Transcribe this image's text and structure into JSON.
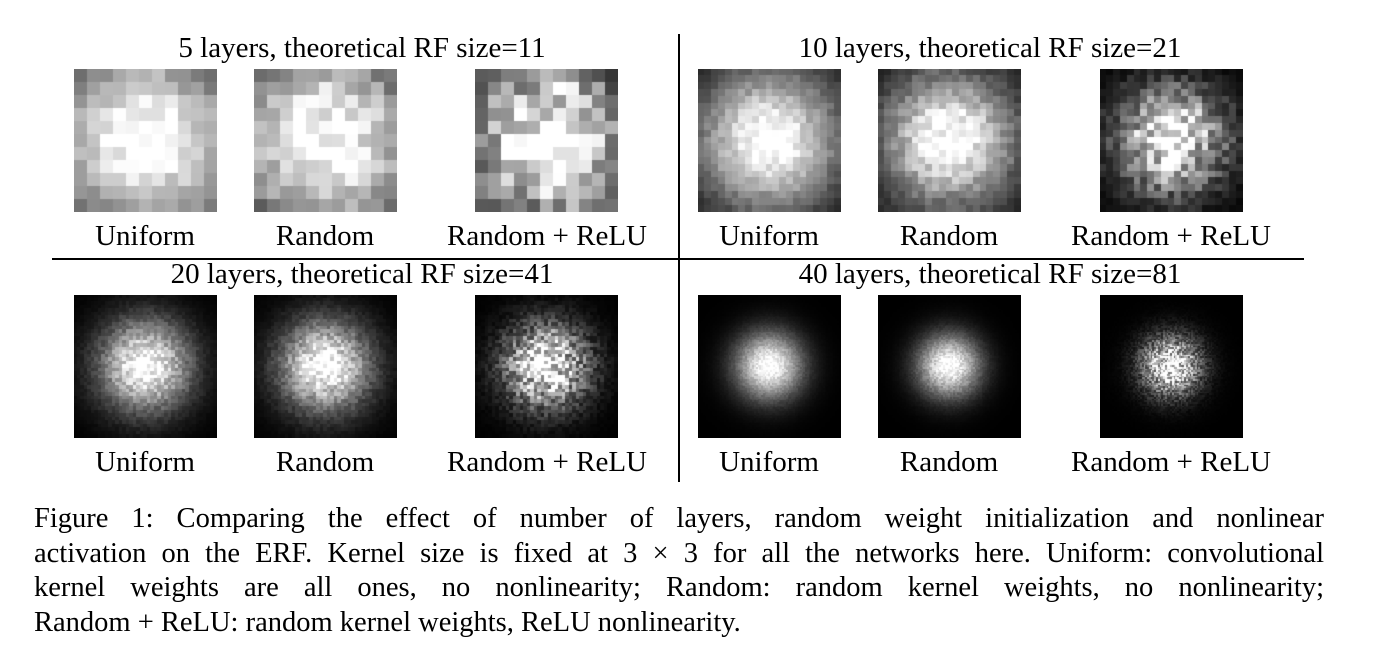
{
  "figure": {
    "panels": [
      {
        "title": "5 layers, theoretical RF size=11",
        "grid": 11,
        "images": [
          {
            "label": "Uniform",
            "sigma": 0.5,
            "noise": 0.1,
            "seed": 11
          },
          {
            "label": "Random",
            "sigma": 0.5,
            "noise": 0.18,
            "seed": 12
          },
          {
            "label": "Random + ReLU",
            "sigma": 0.42,
            "noise": 0.38,
            "seed": 13
          }
        ]
      },
      {
        "title": "10 layers, theoretical RF size=21",
        "grid": 21,
        "images": [
          {
            "label": "Uniform",
            "sigma": 0.36,
            "noise": 0.12,
            "seed": 21
          },
          {
            "label": "Random",
            "sigma": 0.34,
            "noise": 0.18,
            "seed": 22
          },
          {
            "label": "Random + ReLU",
            "sigma": 0.26,
            "noise": 0.45,
            "seed": 23
          }
        ]
      },
      {
        "title": "20 layers, theoretical RF size=41",
        "grid": 41,
        "images": [
          {
            "label": "Uniform",
            "sigma": 0.22,
            "noise": 0.22,
            "seed": 31
          },
          {
            "label": "Random",
            "sigma": 0.22,
            "noise": 0.25,
            "seed": 32
          },
          {
            "label": "Random + ReLU",
            "sigma": 0.2,
            "noise": 0.55,
            "seed": 33
          }
        ]
      },
      {
        "title": "40 layers, theoretical RF size=81",
        "grid": 81,
        "images": [
          {
            "label": "Uniform",
            "sigma": 0.16,
            "noise": 0.12,
            "seed": 41
          },
          {
            "label": "Random",
            "sigma": 0.15,
            "noise": 0.15,
            "seed": 42
          },
          {
            "label": "Random + ReLU",
            "sigma": 0.14,
            "noise": 0.6,
            "seed": 43
          }
        ]
      }
    ]
  },
  "caption": {
    "lines": [
      "Figure 1: Comparing the effect of number of layers, random weight initialization and nonlinear",
      "activation on the ERF. Kernel size is fixed at 3 × 3 for all the networks here. Uniform: convolutional",
      "kernel weights are all ones, no nonlinearity; Random: random kernel weights, no nonlinearity;",
      "Random + ReLU: random kernel weights, ReLU nonlinearity."
    ]
  }
}
